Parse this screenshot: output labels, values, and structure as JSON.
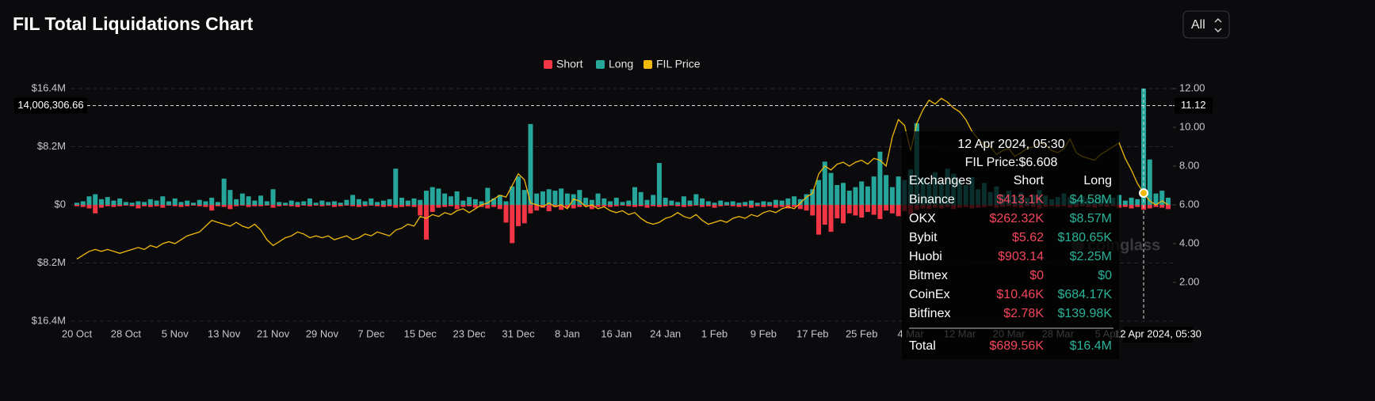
{
  "chart_data": {
    "type": "bar",
    "title": "FIL Total Liquidations Chart",
    "range_selector": "All",
    "categories": [
      "20 Oct",
      null,
      null,
      null,
      null,
      null,
      null,
      null,
      "28 Oct",
      null,
      null,
      null,
      null,
      null,
      null,
      null,
      "5 Nov",
      null,
      null,
      null,
      null,
      null,
      null,
      null,
      "13 Nov",
      null,
      null,
      null,
      null,
      null,
      null,
      null,
      "21 Nov",
      null,
      null,
      null,
      null,
      null,
      null,
      null,
      "29 Nov",
      null,
      null,
      null,
      null,
      null,
      null,
      null,
      "7 Dec",
      null,
      null,
      null,
      null,
      null,
      null,
      null,
      "15 Dec",
      null,
      null,
      null,
      null,
      null,
      null,
      null,
      "23 Dec",
      null,
      null,
      null,
      null,
      null,
      null,
      null,
      "31 Dec",
      null,
      null,
      null,
      null,
      null,
      null,
      null,
      "8 Jan",
      null,
      null,
      null,
      null,
      null,
      null,
      null,
      "16 Jan",
      null,
      null,
      null,
      null,
      null,
      null,
      null,
      "24 Jan",
      null,
      null,
      null,
      null,
      null,
      null,
      null,
      "1 Feb",
      null,
      null,
      null,
      null,
      null,
      null,
      null,
      "9 Feb",
      null,
      null,
      null,
      null,
      null,
      null,
      null,
      "17 Feb",
      null,
      null,
      null,
      null,
      null,
      null,
      null,
      "25 Feb",
      null,
      null,
      null,
      null,
      null,
      null,
      null,
      "4 Mar",
      null,
      null,
      null,
      null,
      null,
      null,
      null,
      "12 Mar",
      null,
      null,
      null,
      null,
      null,
      null,
      null,
      "20 Mar",
      null,
      null,
      null,
      null,
      null,
      null,
      null,
      "28 Mar",
      null,
      null,
      null,
      null,
      null,
      null,
      null,
      "5 Apr",
      null,
      null,
      null,
      null,
      null,
      "12 Apr 2024, 05:30",
      null,
      null,
      null,
      null
    ],
    "series": [
      {
        "name": "Short",
        "color": "#f23645",
        "values": [
          -200000.0,
          -300000.0,
          -500000.0,
          -1200000.0,
          -400000.0,
          -200000.0,
          -300000.0,
          -200000.0,
          -100000.0,
          -200000.0,
          -500000.0,
          -200000.0,
          -300000.0,
          -200000.0,
          -400000.0,
          -100000.0,
          -200000.0,
          -300000.0,
          -200000.0,
          -100000.0,
          -200000.0,
          -300000.0,
          -800000.0,
          -200000.0,
          -300000.0,
          -600000.0,
          -200000.0,
          -100000.0,
          -300000.0,
          -200000.0,
          -200000.0,
          -100000.0,
          -400000.0,
          -200000.0,
          -100000.0,
          -200000.0,
          -300000.0,
          -100000.0,
          -200000.0,
          -100000.0,
          -200000.0,
          -100000.0,
          -300000.0,
          -200000.0,
          -100000.0,
          -200000.0,
          -300000.0,
          -200000.0,
          -100000.0,
          -200000.0,
          -300000.0,
          -200000.0,
          -400000.0,
          -300000.0,
          -200000.0,
          -300000.0,
          -1500000.0,
          -4900000.0,
          -1000000.0,
          -400000.0,
          -300000.0,
          -200000.0,
          -600000.0,
          -300000.0,
          -200000.0,
          -400000.0,
          -300000.0,
          -500000.0,
          -300000.0,
          -600000.0,
          -2500000.0,
          -5400000.0,
          -3000000.0,
          -2600000.0,
          -1200000.0,
          -800000.0,
          -400000.0,
          -900000.0,
          -300000.0,
          -700000.0,
          -400000.0,
          -500000.0,
          -300000.0,
          -200000.0,
          -600000.0,
          -300000.0,
          -200000.0,
          -300000.0,
          -200000.0,
          -100000.0,
          -200000.0,
          -300000.0,
          -200000.0,
          -400000.0,
          -200000.0,
          -300000.0,
          -200000.0,
          -100000.0,
          -200000.0,
          -300000.0,
          -200000.0,
          -100000.0,
          -300000.0,
          -200000.0,
          -400000.0,
          -200000.0,
          -100000.0,
          -200000.0,
          -300000.0,
          -200000.0,
          -400000.0,
          -200000.0,
          -300000.0,
          -200000.0,
          -400000.0,
          -300000.0,
          -500000.0,
          -300000.0,
          -600000.0,
          -800000.0,
          -1500000.0,
          -4200000.0,
          -2800000.0,
          -3800000.0,
          -1900000.0,
          -2600000.0,
          -1200000.0,
          -1500000.0,
          -1800000.0,
          -1000000.0,
          -1400000.0,
          -2000000.0,
          -800000.0,
          -1200000.0,
          -1600000.0,
          -900000.0,
          -1300000.0,
          -700000.0,
          -500000.0,
          -600000.0,
          -400000.0,
          -500000.0,
          -300000.0,
          -600000.0,
          -400000.0,
          -300000.0,
          -500000.0,
          -400000.0,
          -300000.0,
          -200000.0,
          -400000.0,
          -300000.0,
          -200000.0,
          -300000.0,
          -400000.0,
          -200000.0,
          -300000.0,
          -500000.0,
          -300000.0,
          -200000.0,
          -300000.0,
          -200000.0,
          -400000.0,
          -300000.0,
          -200000.0,
          -300000.0,
          -400000.0,
          -200000.0,
          -300000.0,
          -200000.0,
          -400000.0,
          -300000.0,
          -500000.0,
          -300000.0,
          -689560,
          -500000.0,
          -300000.0,
          -400000.0,
          -600000.0
        ]
      },
      {
        "name": "Long",
        "color": "#26a69a",
        "values": [
          300000.0,
          500000.0,
          1200000.0,
          1500000.0,
          800000.0,
          1100000.0,
          600000.0,
          900000.0,
          400000.0,
          300000.0,
          500000.0,
          400000.0,
          800000.0,
          600000.0,
          1200000.0,
          500000.0,
          900000.0,
          400000.0,
          600000.0,
          300000.0,
          700000.0,
          500000.0,
          1000000.0,
          400000.0,
          3700000.0,
          2100000.0,
          800000.0,
          1600000.0,
          1200000.0,
          600000.0,
          1300000.0,
          500000.0,
          2200000.0,
          400000.0,
          300000.0,
          600000.0,
          400000.0,
          500000.0,
          900000.0,
          300000.0,
          600000.0,
          400000.0,
          500000.0,
          300000.0,
          700000.0,
          1400000.0,
          800000.0,
          500000.0,
          900000.0,
          400000.0,
          600000.0,
          800000.0,
          5100000.0,
          1000000.0,
          600000.0,
          900000.0,
          700000.0,
          2000000.0,
          2500000.0,
          2300000.0,
          1600000.0,
          1200000.0,
          1900000.0,
          600000.0,
          1100000.0,
          800000.0,
          500000.0,
          2400000.0,
          900000.0,
          1400000.0,
          500000.0,
          2600000.0,
          4000000.0,
          2100000.0,
          11400000.0,
          1600000.0,
          1900000.0,
          2200000.0,
          2000000.0,
          2300000.0,
          1600000.0,
          1500000.0,
          2100000.0,
          1000000.0,
          700000.0,
          1600000.0,
          900000.0,
          500000.0,
          1000000.0,
          400000.0,
          600000.0,
          2500000.0,
          1800000.0,
          700000.0,
          1400000.0,
          5900000.0,
          1000000.0,
          600000.0,
          400000.0,
          1200000.0,
          600000.0,
          1500000.0,
          900000.0,
          500000.0,
          300000.0,
          600000.0,
          400000.0,
          500000.0,
          300000.0,
          400000.0,
          600000.0,
          300000.0,
          500000.0,
          400000.0,
          700000.0,
          600000.0,
          900000.0,
          1200000.0,
          800000.0,
          1500000.0,
          2200000.0,
          3500000.0,
          6100000.0,
          4500000.0,
          2800000.0,
          3100000.0,
          2000000.0,
          2500000.0,
          3300000.0,
          2600000.0,
          4000000.0,
          7500000.0,
          4200000.0,
          2500000.0,
          4000000.0,
          3500000.0,
          5000000.0,
          11500000.0,
          3800000.0,
          3000000.0,
          4600000.0,
          3200000.0,
          5100000.0,
          4400000.0,
          3500000.0,
          2800000.0,
          3900000.0,
          2200000.0,
          3100000.0,
          1800000.0,
          2600000.0,
          1500000.0,
          2000000.0,
          1200000.0,
          1700000.0,
          1000000.0,
          1400000.0,
          2100000.0,
          1300000.0,
          800000.0,
          1100000.0,
          1600000.0,
          1000000.0,
          700000.0,
          1200000.0,
          900000.0,
          600000.0,
          1300000.0,
          800000.0,
          1000000.0,
          1400000.0,
          600000.0,
          1000000.0,
          800000.0,
          16400000.0,
          6400000.0,
          1600000.0,
          2000000.0,
          1000000.0
        ]
      },
      {
        "name": "FIL Price",
        "color": "#f0b90b",
        "axis": "y2",
        "values": [
          3.2,
          3.4,
          3.6,
          3.7,
          3.6,
          3.7,
          3.6,
          3.5,
          3.6,
          3.7,
          3.8,
          3.7,
          3.9,
          3.8,
          4.0,
          4.1,
          4.0,
          4.2,
          4.4,
          4.5,
          4.6,
          4.9,
          5.2,
          5.1,
          5.0,
          4.9,
          5.1,
          4.9,
          4.8,
          5.0,
          4.7,
          4.2,
          3.9,
          4.1,
          4.3,
          4.4,
          4.6,
          4.5,
          4.3,
          4.4,
          4.3,
          4.4,
          4.2,
          4.3,
          4.4,
          4.2,
          4.3,
          4.5,
          4.4,
          4.6,
          4.5,
          4.4,
          4.7,
          4.8,
          5.0,
          4.9,
          5.4,
          5.3,
          5.5,
          5.4,
          5.6,
          5.5,
          5.7,
          5.8,
          5.6,
          5.8,
          6.0,
          6.1,
          6.3,
          6.5,
          6.4,
          7.0,
          7.6,
          7.3,
          6.1,
          6.0,
          5.9,
          6.1,
          5.9,
          6.0,
          5.8,
          6.3,
          6.2,
          5.9,
          6.0,
          5.8,
          5.9,
          5.7,
          5.6,
          5.7,
          5.5,
          5.6,
          5.3,
          5.1,
          5.0,
          5.1,
          5.3,
          5.4,
          5.6,
          5.4,
          5.3,
          5.5,
          5.2,
          5.0,
          5.1,
          5.2,
          5.1,
          5.3,
          5.4,
          5.3,
          5.5,
          5.4,
          5.6,
          5.7,
          5.6,
          5.8,
          5.9,
          5.8,
          6.1,
          6.4,
          6.6,
          7.6,
          8.0,
          7.8,
          8.1,
          8.2,
          8.0,
          8.2,
          8.3,
          8.1,
          8.4,
          8.3,
          8.0,
          9.5,
          10.4,
          10.1,
          8.8,
          10.2,
          10.9,
          11.4,
          11.2,
          11.5,
          11.3,
          11.0,
          10.8,
          10.4,
          9.8,
          9.4,
          9.1,
          9.0,
          8.6,
          8.8,
          8.9,
          8.5,
          8.7,
          8.9,
          9.0,
          9.2,
          9.1,
          8.8,
          8.7,
          8.9,
          9.4,
          8.7,
          8.5,
          8.4,
          8.3,
          8.6,
          8.8,
          9.0,
          9.2,
          8.4,
          7.8,
          7.1,
          6.608,
          6.2,
          6.0,
          6.2,
          6.0
        ]
      }
    ],
    "ylim": [
      -16400000,
      16400000
    ],
    "yticks": [
      {
        "value": 16400000,
        "label": "$16.4M"
      },
      {
        "value": 8200000,
        "label": "$8.2M"
      },
      {
        "value": 0,
        "label": "$0"
      },
      {
        "value": -8200000,
        "label": "$8.2M"
      },
      {
        "value": -16400000,
        "label": "$16.4M"
      }
    ],
    "y2lim": [
      0,
      12
    ],
    "y2ticks": [
      {
        "value": 12,
        "label": "12.00"
      },
      {
        "value": 10,
        "label": "10.00"
      },
      {
        "value": 8,
        "label": "8.00"
      },
      {
        "value": 6,
        "label": "6.00"
      },
      {
        "value": 4,
        "label": "4.00"
      },
      {
        "value": 2,
        "label": "2.00"
      }
    ],
    "grid": true,
    "legend": "top",
    "crosshair": {
      "y": {
        "value": 14006306.66,
        "label": "14,006,306.66"
      },
      "y2": {
        "value": 11.12,
        "label": "11.12"
      }
    },
    "watermark": "coinglass",
    "tooltip": {
      "title": "12 Apr 2024, 05:30",
      "price": "FIL Price:$6.608",
      "header": [
        "Exchanges",
        "Short",
        "Long"
      ],
      "rows": [
        [
          "Binance",
          "$413.1K",
          "$4.58M"
        ],
        [
          "OKX",
          "$262.32K",
          "$8.57M"
        ],
        [
          "Bybit",
          "$5.62",
          "$180.65K"
        ],
        [
          "Huobi",
          "$903.14",
          "$2.25M"
        ],
        [
          "Bitmex",
          "$0",
          "$0"
        ],
        [
          "CoinEx",
          "$10.46K",
          "$684.17K"
        ],
        [
          "Bitfinex",
          "$2.78K",
          "$139.98K"
        ]
      ],
      "total": [
        "Total",
        "$689.56K",
        "$16.4M"
      ]
    }
  }
}
